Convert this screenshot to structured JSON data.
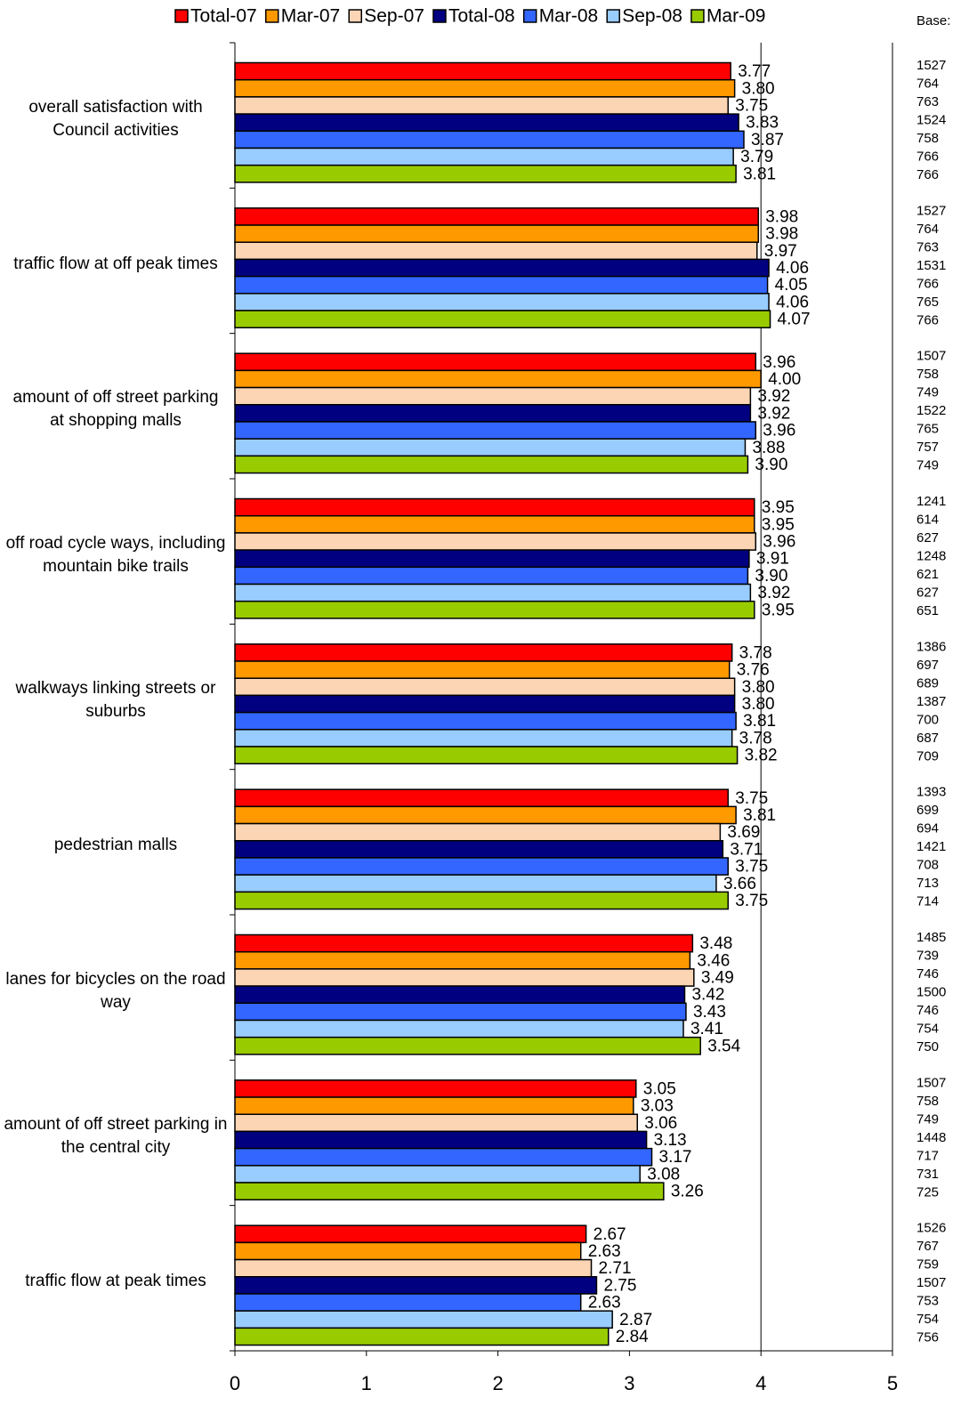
{
  "chart_data": {
    "type": "hbar",
    "categories": [
      "overall satisfaction with Council activities",
      "traffic flow at off peak times",
      "amount of off street parking at shopping malls",
      "off road cycle ways, including mountain bike trails",
      "walkways linking streets or suburbs",
      "pedestrian malls",
      "lanes for bicycles on the road way",
      "amount of off street parking in the central city",
      "traffic flow at peak times"
    ],
    "series": [
      {
        "name": "Total-07",
        "color": "#ff0000",
        "values": [
          3.77,
          3.98,
          3.96,
          3.95,
          3.78,
          3.75,
          3.48,
          3.05,
          2.67
        ],
        "value_labels": [
          "3.77",
          "3.98",
          "3.96",
          "3.95",
          "3.78",
          "3.75",
          "3.48",
          "3.05",
          "2.67"
        ],
        "base": [
          1527,
          1527,
          1507,
          1241,
          1386,
          1393,
          1485,
          1507,
          1526
        ]
      },
      {
        "name": "Mar-07",
        "color": "#ff9900",
        "values": [
          3.8,
          3.98,
          4.0,
          3.95,
          3.76,
          3.81,
          3.46,
          3.03,
          2.63
        ],
        "value_labels": [
          "3.80",
          "3.98",
          "4.00",
          "3.95",
          "3.76",
          "3.81",
          "3.46",
          "3.03",
          "2.63"
        ],
        "base": [
          764,
          764,
          758,
          614,
          697,
          699,
          739,
          758,
          767
        ]
      },
      {
        "name": "Sep-07",
        "color": "#fcd5b4",
        "values": [
          3.75,
          3.97,
          3.92,
          3.96,
          3.8,
          3.69,
          3.49,
          3.06,
          2.71
        ],
        "value_labels": [
          "3.75",
          "3.97",
          "3.92",
          "3.96",
          "3.80",
          "3.69",
          "3.49",
          "3.06",
          "2.71"
        ],
        "base": [
          763,
          763,
          749,
          627,
          689,
          694,
          746,
          749,
          759
        ]
      },
      {
        "name": "Total-08",
        "color": "#000080",
        "values": [
          3.83,
          4.06,
          3.92,
          3.91,
          3.8,
          3.71,
          3.42,
          3.13,
          2.75
        ],
        "value_labels": [
          "3.83",
          "4.06",
          "3.92",
          "3.91",
          "3.80",
          "3.71",
          "3.42",
          "3.13",
          "2.75"
        ],
        "base": [
          1524,
          1531,
          1522,
          1248,
          1387,
          1421,
          1500,
          1448,
          1507
        ]
      },
      {
        "name": "Mar-08",
        "color": "#3366ff",
        "values": [
          3.87,
          4.05,
          3.96,
          3.9,
          3.81,
          3.75,
          3.43,
          3.17,
          2.63
        ],
        "value_labels": [
          "3.87",
          "4.05",
          "3.96",
          "3.90",
          "3.81",
          "3.75",
          "3.43",
          "3.17",
          "2.63"
        ],
        "base": [
          758,
          766,
          765,
          621,
          700,
          708,
          746,
          717,
          753
        ]
      },
      {
        "name": "Sep-08",
        "color": "#99ccff",
        "values": [
          3.79,
          4.06,
          3.88,
          3.92,
          3.78,
          3.66,
          3.41,
          3.08,
          2.87
        ],
        "value_labels": [
          "3.79",
          "4.06",
          "3.88",
          "3.92",
          "3.78",
          "3.66",
          "3.41",
          "3.08",
          "2.87"
        ],
        "base": [
          766,
          765,
          757,
          627,
          687,
          713,
          754,
          731,
          754
        ]
      },
      {
        "name": "Mar-09",
        "color": "#99cc00",
        "values": [
          3.81,
          4.07,
          3.9,
          3.95,
          3.82,
          3.75,
          3.54,
          3.26,
          2.84
        ],
        "value_labels": [
          "3.81",
          "4.07",
          "3.90",
          "3.95",
          "3.82",
          "3.75",
          "3.54",
          "3.26",
          "2.84"
        ],
        "base": [
          766,
          766,
          749,
          651,
          709,
          714,
          750,
          725,
          756
        ]
      }
    ],
    "base_label": "Base:",
    "xlim": [
      0,
      5
    ],
    "xticks": [
      0,
      1,
      2,
      3,
      4,
      5
    ],
    "reference_line": 4
  }
}
